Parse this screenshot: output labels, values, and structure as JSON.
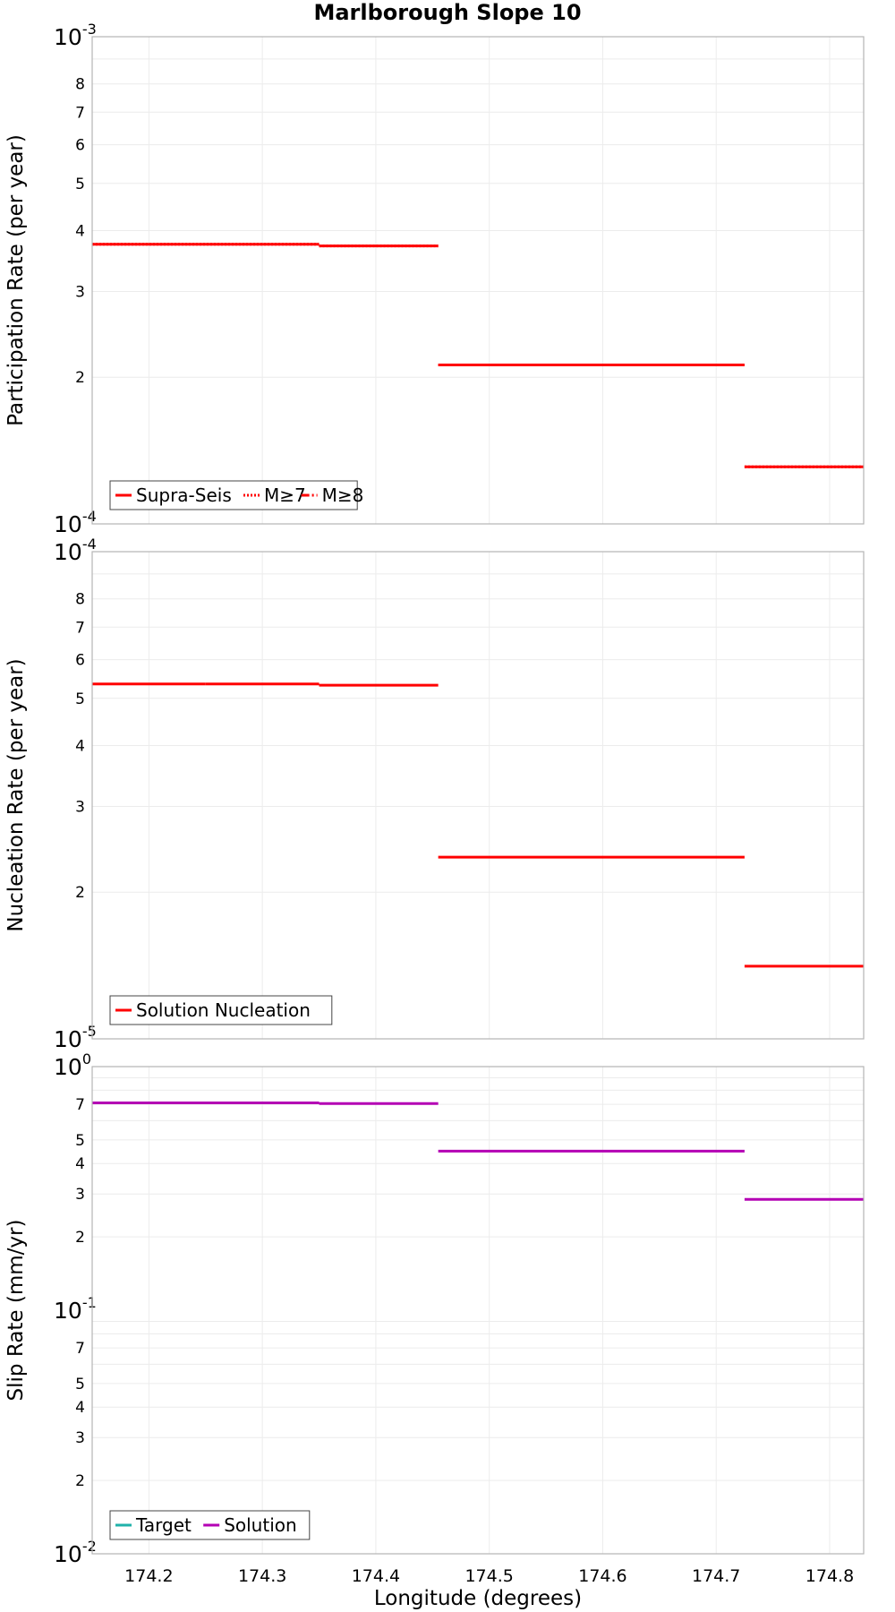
{
  "figure": {
    "title": "Marlborough Slope 10",
    "xlabel": "Longitude (degrees)",
    "xlim": [
      174.15,
      174.83
    ],
    "xticks": [
      174.2,
      174.3,
      174.4,
      174.5,
      174.6,
      174.7,
      174.8
    ],
    "xtick_labels": [
      "174.2",
      "174.3",
      "174.4",
      "174.5",
      "174.6",
      "174.7",
      "174.8"
    ]
  },
  "chart_data": [
    {
      "type": "line",
      "ylabel": "Participation Rate (per year)",
      "yscale": "log",
      "ylim": [
        0.0001,
        0.001
      ],
      "grid": true,
      "legend_position": "bottom-left",
      "y_decade_labels": [
        {
          "base": "10",
          "exp": "-3"
        },
        {
          "base": "10",
          "exp": "-4"
        }
      ],
      "y_minor_labels": [
        "8",
        "7",
        "6",
        "5",
        "4",
        "3",
        "2"
      ],
      "series": [
        {
          "name": "Supra-Seis",
          "color": "#ff0000",
          "dash": "solid",
          "segments": [
            {
              "x": [
                174.15,
                174.35
              ],
              "y": 0.000375
            },
            {
              "x": [
                174.35,
                174.455
              ],
              "y": 0.000372
            },
            {
              "x": [
                174.455,
                174.725
              ],
              "y": 0.000212
            },
            {
              "x": [
                174.725,
                174.83
              ],
              "y": 0.000131
            }
          ]
        },
        {
          "name": "M≥7",
          "color": "#ff0000",
          "dash": "dotted",
          "segments": [
            {
              "x": [
                174.15,
                174.35
              ],
              "y": 0.000375
            },
            {
              "x": [
                174.35,
                174.455
              ],
              "y": 0.000372
            },
            {
              "x": [
                174.455,
                174.725
              ],
              "y": 0.000212
            },
            {
              "x": [
                174.725,
                174.83
              ],
              "y": 0.000131
            }
          ]
        },
        {
          "name": "M≥8",
          "color": "#ff0000",
          "dash": "dashdot",
          "segments": []
        }
      ]
    },
    {
      "type": "line",
      "ylabel": "Nucleation Rate (per year)",
      "yscale": "log",
      "ylim": [
        1e-05,
        0.0001
      ],
      "grid": true,
      "legend_position": "bottom-left",
      "y_decade_labels": [
        {
          "base": "10",
          "exp": "-4"
        },
        {
          "base": "10",
          "exp": "-5"
        }
      ],
      "y_minor_labels": [
        "8",
        "7",
        "6",
        "5",
        "4",
        "3",
        "2"
      ],
      "series": [
        {
          "name": "Solution Nucleation",
          "color": "#ff0000",
          "dash": "solid",
          "segments": [
            {
              "x": [
                174.15,
                174.25
              ],
              "y": 5.35e-05
            },
            {
              "x": [
                174.25,
                174.35
              ],
              "y": 5.35e-05
            },
            {
              "x": [
                174.35,
                174.455
              ],
              "y": 5.32e-05
            },
            {
              "x": [
                174.455,
                174.725
              ],
              "y": 2.36e-05
            },
            {
              "x": [
                174.725,
                174.83
              ],
              "y": 1.41e-05
            }
          ]
        }
      ]
    },
    {
      "type": "line",
      "ylabel": "Slip Rate (mm/yr)",
      "yscale": "log",
      "ylim": [
        0.01,
        1
      ],
      "grid": true,
      "legend_position": "bottom-left",
      "y_decade_labels": [
        {
          "base": "10",
          "exp": "0"
        },
        {
          "base": "10",
          "exp": "-1"
        },
        {
          "base": "10",
          "exp": "-2"
        }
      ],
      "y_minor_labels": [
        "7",
        "5",
        "4",
        "3",
        "2",
        "7",
        "5",
        "4",
        "3",
        "2"
      ],
      "series": [
        {
          "name": "Target",
          "color": "#20b2aa",
          "dash": "solid",
          "segments": []
        },
        {
          "name": "Solution",
          "color": "#b400b4",
          "dash": "solid",
          "segments": [
            {
              "x": [
                174.15,
                174.35
              ],
              "y": 0.71
            },
            {
              "x": [
                174.35,
                174.455
              ],
              "y": 0.705
            },
            {
              "x": [
                174.455,
                174.725
              ],
              "y": 0.45
            },
            {
              "x": [
                174.725,
                174.83
              ],
              "y": 0.285
            }
          ]
        }
      ]
    }
  ]
}
